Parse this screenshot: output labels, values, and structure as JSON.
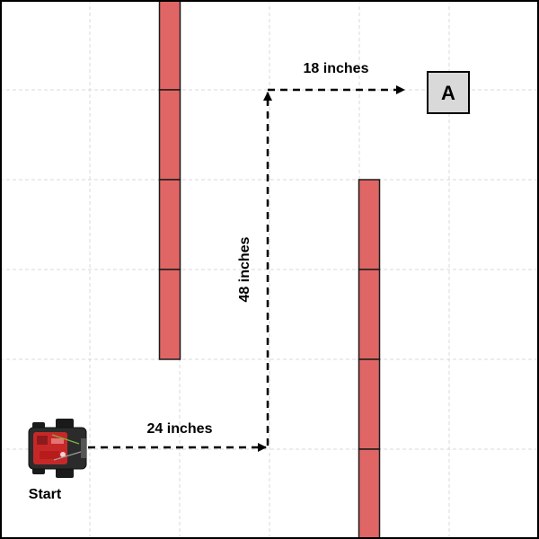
{
  "colors": {
    "background": "#ffffff",
    "grid": "#d9d9d9",
    "border": "#000000",
    "wall_fill": "#e06666",
    "wall_stroke": "#1a1a1a",
    "path": "#000000",
    "target_fill": "#d9d9d9",
    "robot_body": "#2b2b2b",
    "robot_board": "#d32f2f"
  },
  "field": {
    "grid_divisions": 6,
    "walls": [
      {
        "name": "left-wall",
        "column": 1.8,
        "from_row": 0,
        "to_row": 4,
        "segments": 4
      },
      {
        "name": "right-wall",
        "column": 4.1,
        "from_row": 2,
        "to_row": 6,
        "segments": 4
      }
    ]
  },
  "path": {
    "legs": [
      {
        "label": "24 inches",
        "direction": "east"
      },
      {
        "label": "48 inches",
        "direction": "north"
      },
      {
        "label": "18 inches",
        "direction": "east"
      }
    ]
  },
  "start": {
    "label": "Start",
    "robot_icon": "robot-icon"
  },
  "target": {
    "label": "A"
  }
}
